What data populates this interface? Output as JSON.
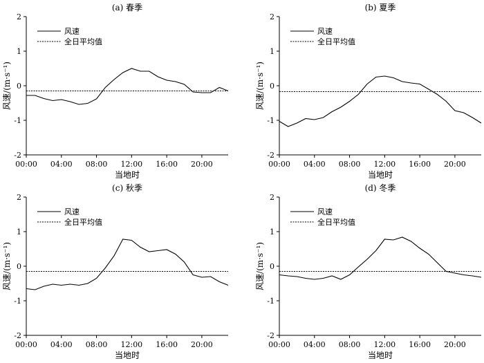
{
  "chart_data": [
    {
      "type": "line",
      "title": "(a) 春季",
      "xlabel": "当地时",
      "ylabel": "风速/(m·s⁻¹)",
      "ylim": [
        -2,
        2
      ],
      "yticks": [
        -2,
        -1,
        0,
        1,
        2
      ],
      "xlim": [
        0,
        23
      ],
      "xticks": [
        0,
        4,
        8,
        12,
        16,
        20
      ],
      "xtick_labels": [
        "00:00",
        "04:00",
        "08:00",
        "12:00",
        "16:00",
        "20:00"
      ],
      "legend": "top-left",
      "grid": false,
      "x": [
        0,
        1,
        2,
        3,
        4,
        5,
        6,
        7,
        8,
        9,
        10,
        11,
        12,
        13,
        14,
        15,
        16,
        17,
        18,
        19,
        20,
        21,
        22,
        23
      ],
      "series": [
        {
          "name": "风速",
          "style": "solid",
          "values": [
            -0.28,
            -0.28,
            -0.37,
            -0.43,
            -0.4,
            -0.46,
            -0.54,
            -0.51,
            -0.38,
            -0.05,
            0.18,
            0.38,
            0.5,
            0.42,
            0.42,
            0.26,
            0.16,
            0.12,
            0.04,
            -0.18,
            -0.2,
            -0.2,
            -0.05,
            -0.15
          ]
        },
        {
          "name": "全日平均值",
          "style": "dotted",
          "values": [
            -0.15,
            -0.15,
            -0.15,
            -0.15,
            -0.15,
            -0.15,
            -0.15,
            -0.15,
            -0.15,
            -0.15,
            -0.15,
            -0.15,
            -0.15,
            -0.15,
            -0.15,
            -0.15,
            -0.15,
            -0.15,
            -0.15,
            -0.15,
            -0.15,
            -0.15,
            -0.15,
            -0.15
          ]
        }
      ]
    },
    {
      "type": "line",
      "title": "(b) 夏季",
      "xlabel": "当地时",
      "ylabel": "风速/(m·s⁻¹)",
      "ylim": [
        -2,
        2
      ],
      "yticks": [
        -2,
        -1,
        0,
        1,
        2
      ],
      "xlim": [
        0,
        23
      ],
      "xticks": [
        0,
        4,
        8,
        12,
        16,
        20
      ],
      "xtick_labels": [
        "00:00",
        "04:00",
        "08:00",
        "12:00",
        "16:00",
        "20:00"
      ],
      "legend": "top-left",
      "grid": false,
      "x": [
        0,
        1,
        2,
        3,
        4,
        5,
        6,
        7,
        8,
        9,
        10,
        11,
        12,
        13,
        14,
        15,
        16,
        17,
        18,
        19,
        20,
        21,
        22,
        23
      ],
      "series": [
        {
          "name": "风速",
          "style": "solid",
          "values": [
            -1.03,
            -1.18,
            -1.08,
            -0.95,
            -0.98,
            -0.92,
            -0.75,
            -0.62,
            -0.45,
            -0.25,
            0.05,
            0.25,
            0.28,
            0.23,
            0.12,
            0.08,
            0.05,
            -0.1,
            -0.25,
            -0.45,
            -0.72,
            -0.78,
            -0.92,
            -1.08
          ]
        },
        {
          "name": "全日平均值",
          "style": "dotted",
          "values": [
            -0.17,
            -0.17,
            -0.17,
            -0.17,
            -0.17,
            -0.17,
            -0.17,
            -0.17,
            -0.17,
            -0.17,
            -0.17,
            -0.17,
            -0.17,
            -0.17,
            -0.17,
            -0.17,
            -0.17,
            -0.17,
            -0.17,
            -0.17,
            -0.17,
            -0.17,
            -0.17,
            -0.17
          ]
        }
      ]
    },
    {
      "type": "line",
      "title": "(c) 秋季",
      "xlabel": "当地时",
      "ylabel": "风速/(m·s⁻¹)",
      "ylim": [
        -2,
        2
      ],
      "yticks": [
        -2,
        -1,
        0,
        1,
        2
      ],
      "xlim": [
        0,
        23
      ],
      "xticks": [
        0,
        4,
        8,
        12,
        16,
        20
      ],
      "xtick_labels": [
        "00:00",
        "04:00",
        "08:00",
        "12:00",
        "16:00",
        "20:00"
      ],
      "legend": "top-left",
      "grid": false,
      "x": [
        0,
        1,
        2,
        3,
        4,
        5,
        6,
        7,
        8,
        9,
        10,
        11,
        12,
        13,
        14,
        15,
        16,
        17,
        18,
        19,
        20,
        21,
        22,
        23
      ],
      "series": [
        {
          "name": "风速",
          "style": "solid",
          "values": [
            -0.65,
            -0.68,
            -0.58,
            -0.52,
            -0.55,
            -0.52,
            -0.55,
            -0.5,
            -0.35,
            -0.05,
            0.3,
            0.78,
            0.75,
            0.55,
            0.42,
            0.45,
            0.48,
            0.35,
            0.12,
            -0.25,
            -0.32,
            -0.3,
            -0.45,
            -0.55
          ]
        },
        {
          "name": "全日平均值",
          "style": "dotted",
          "values": [
            -0.15,
            -0.15,
            -0.15,
            -0.15,
            -0.15,
            -0.15,
            -0.15,
            -0.15,
            -0.15,
            -0.15,
            -0.15,
            -0.15,
            -0.15,
            -0.15,
            -0.15,
            -0.15,
            -0.15,
            -0.15,
            -0.15,
            -0.15,
            -0.15,
            -0.15,
            -0.15,
            -0.15
          ]
        }
      ]
    },
    {
      "type": "line",
      "title": "(d) 冬季",
      "xlabel": "当地时",
      "ylabel": "风速/(m·s⁻¹)",
      "ylim": [
        -2,
        2
      ],
      "yticks": [
        -2,
        -1,
        0,
        1,
        2
      ],
      "xlim": [
        0,
        23
      ],
      "xticks": [
        0,
        4,
        8,
        12,
        16,
        20
      ],
      "xtick_labels": [
        "00:00",
        "04:00",
        "08:00",
        "12:00",
        "16:00",
        "20:00"
      ],
      "legend": "top-left",
      "grid": false,
      "x": [
        0,
        1,
        2,
        3,
        4,
        5,
        6,
        7,
        8,
        9,
        10,
        11,
        12,
        13,
        14,
        15,
        16,
        17,
        18,
        19,
        20,
        21,
        22,
        23
      ],
      "series": [
        {
          "name": "风速",
          "style": "solid",
          "values": [
            -0.25,
            -0.28,
            -0.3,
            -0.35,
            -0.38,
            -0.35,
            -0.28,
            -0.38,
            -0.25,
            -0.02,
            0.2,
            0.45,
            0.78,
            0.76,
            0.84,
            0.72,
            0.52,
            0.35,
            0.1,
            -0.15,
            -0.2,
            -0.25,
            -0.28,
            -0.32
          ]
        },
        {
          "name": "全日平均值",
          "style": "dotted",
          "values": [
            -0.15,
            -0.15,
            -0.15,
            -0.15,
            -0.15,
            -0.15,
            -0.15,
            -0.15,
            -0.15,
            -0.15,
            -0.15,
            -0.15,
            -0.15,
            -0.15,
            -0.15,
            -0.15,
            -0.15,
            -0.15,
            -0.15,
            -0.15,
            -0.15,
            -0.15,
            -0.15,
            -0.15
          ]
        }
      ]
    }
  ]
}
